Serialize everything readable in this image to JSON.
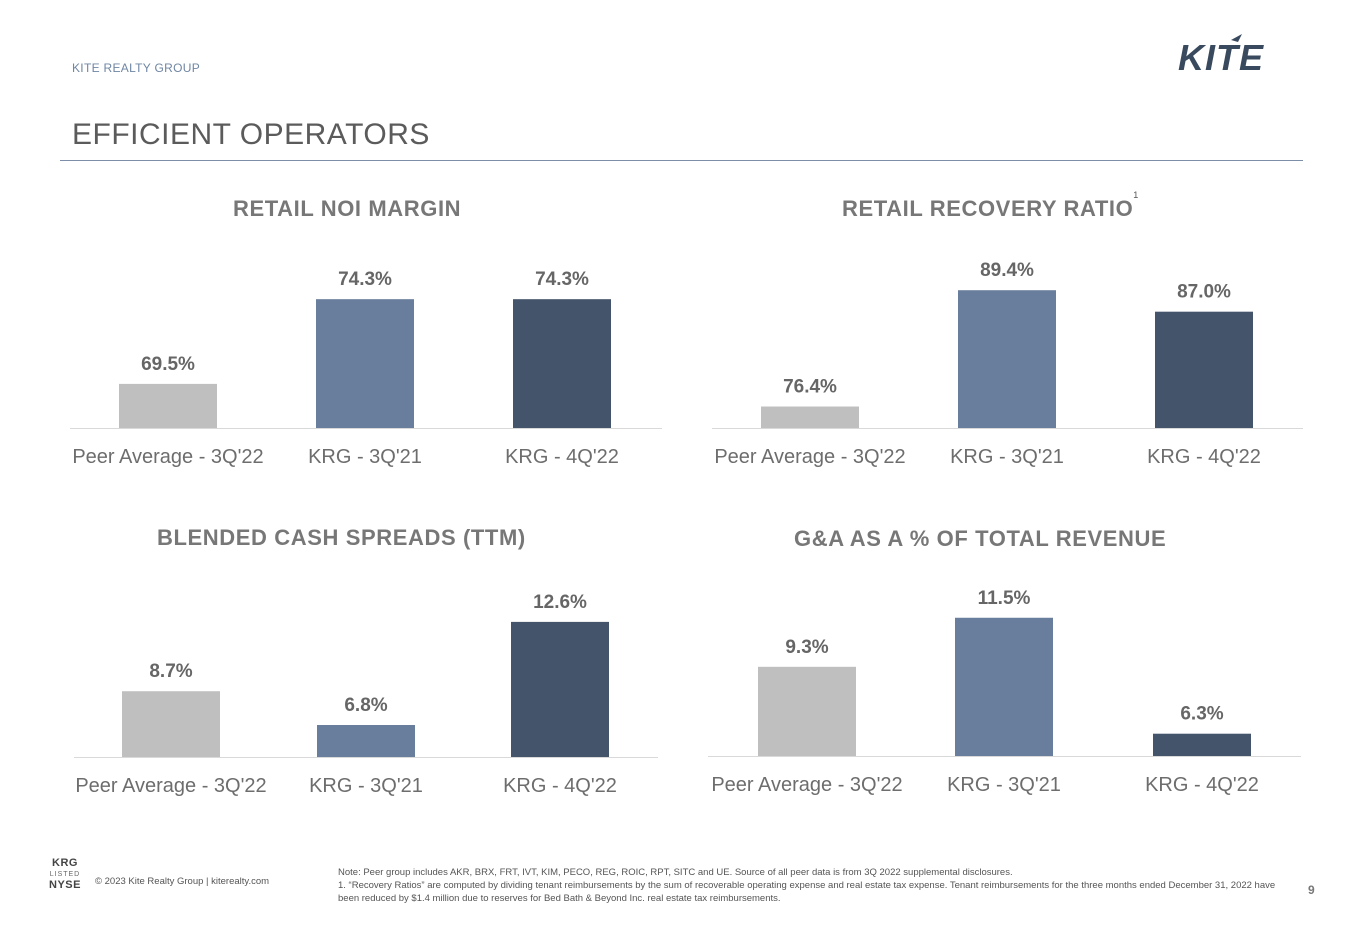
{
  "header": {
    "company": "KITE REALTY GROUP",
    "logo_text": "KITE",
    "title": "EFFICIENT OPERATORS"
  },
  "colors": {
    "peer": "#bfbfbf",
    "krg_3q21": "#687e9c",
    "krg_4q22": "#44546b",
    "rule": "#7d8fa8"
  },
  "chart_data": [
    {
      "type": "bar",
      "title": "RETAIL NOI MARGIN",
      "footnote_ref": "",
      "categories": [
        "Peer Average - 3Q'22",
        "KRG - 3Q'21",
        "KRG - 4Q'22"
      ],
      "values": [
        69.5,
        74.3,
        74.3
      ],
      "labels": [
        "69.5%",
        "74.3%",
        "74.3%"
      ],
      "ylim": [
        67,
        75.5
      ]
    },
    {
      "type": "bar",
      "title": "RETAIL RECOVERY RATIO",
      "footnote_ref": "1",
      "categories": [
        "Peer Average - 3Q'22",
        "KRG - 3Q'21",
        "KRG - 4Q'22"
      ],
      "values": [
        76.4,
        89.4,
        87.0
      ],
      "labels": [
        "76.4%",
        "89.4%",
        "87.0%"
      ],
      "ylim": [
        74,
        93
      ]
    },
    {
      "type": "bar",
      "title": "BLENDED CASH SPREADS (TTM)",
      "footnote_ref": "",
      "categories": [
        "Peer Average - 3Q'22",
        "KRG - 3Q'21",
        "KRG - 4Q'22"
      ],
      "values": [
        8.7,
        6.8,
        12.6
      ],
      "labels": [
        "8.7%",
        "6.8%",
        "12.6%"
      ],
      "ylim": [
        5,
        14
      ]
    },
    {
      "type": "bar",
      "title": "G&A AS A % OF TOTAL REVENUE",
      "footnote_ref": "",
      "categories": [
        "Peer Average - 3Q'22",
        "KRG - 3Q'21",
        "KRG - 4Q'22"
      ],
      "values": [
        9.3,
        11.5,
        6.3
      ],
      "labels": [
        "9.3%",
        "11.5%",
        "6.3%"
      ],
      "ylim": [
        5.3,
        12.7
      ]
    }
  ],
  "footer": {
    "badge_top": "KRG",
    "badge_mid": "LISTED",
    "badge_bottom": "NYSE",
    "copyright": "© 2023 Kite Realty Group  |  kiterealty.com",
    "note1": "Note: Peer group includes AKR, BRX, FRT, IVT, KIM, PECO, REG, ROIC, RPT, SITC and UE. Source of all peer data is from 3Q 2022 supplemental disclosures.",
    "note2": "1. “Recovery Ratios” are computed by dividing tenant reimbursements by the sum of recoverable operating expense and real estate tax expense. Tenant reimbursements for the three months ended December 31, 2022 have been reduced by $1.4 million due to reserves for Bed Bath & Beyond Inc. real estate tax reimbursements.",
    "page_number": "9"
  }
}
